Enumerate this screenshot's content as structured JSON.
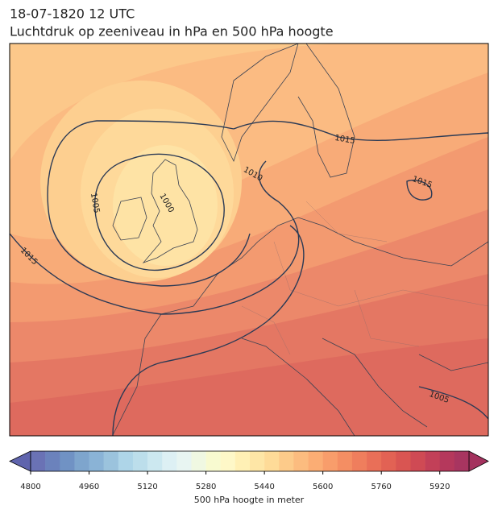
{
  "title_lines": [
    "18-07-1820 12 UTC",
    "Luchtdruk op zeeniveau in hPa en 500 hPa hoogte"
  ],
  "contour_labels": [
    1015,
    1015,
    1010,
    1005,
    1000,
    1015,
    1005
  ],
  "colorbar": {
    "label": "500 hPa hoogte in meter",
    "xlim": [
      4800,
      6000
    ],
    "xticks": [
      4800,
      4960,
      5120,
      5280,
      5440,
      5600,
      5760,
      5920
    ],
    "under_color": "#5f64ad",
    "over_color": "#a4325e",
    "colors": [
      "#6a72b5",
      "#6b82bc",
      "#7092c4",
      "#7ea5cd",
      "#8ab3d6",
      "#9bc3dd",
      "#aed5e8",
      "#bcdeeb",
      "#cce8f0",
      "#ddf0f4",
      "#e8f5f2",
      "#f0f8e2",
      "#f8fad0",
      "#fef8c8",
      "#fff0b5",
      "#fee6a6",
      "#fedb98",
      "#fdcb8a",
      "#fcbc7f",
      "#fbad74",
      "#f89d6b",
      "#f48e63",
      "#ef7e5d",
      "#e96f58",
      "#e26254",
      "#d95552",
      "#cf4a54",
      "#c24058",
      "#b5385c",
      "#a83560"
    ]
  }
}
